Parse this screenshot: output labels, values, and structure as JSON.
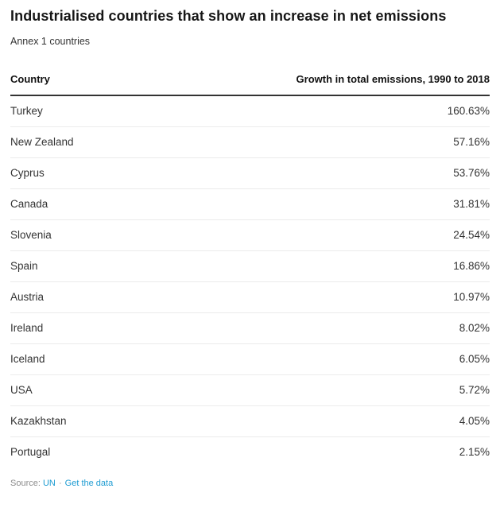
{
  "chart_data": {
    "type": "table",
    "title": "Industrialised countries that show an increase in net emissions",
    "subtitle": "Annex 1 countries",
    "columns": [
      "Country",
      "Growth in total emissions, 1990 to 2018"
    ],
    "rows": [
      {
        "country": "Turkey",
        "growth": "160.63%",
        "growth_pct": 160.63
      },
      {
        "country": "New Zealand",
        "growth": "57.16%",
        "growth_pct": 57.16
      },
      {
        "country": "Cyprus",
        "growth": "53.76%",
        "growth_pct": 53.76
      },
      {
        "country": "Canada",
        "growth": "31.81%",
        "growth_pct": 31.81
      },
      {
        "country": "Slovenia",
        "growth": "24.54%",
        "growth_pct": 24.54
      },
      {
        "country": "Spain",
        "growth": "16.86%",
        "growth_pct": 16.86
      },
      {
        "country": "Austria",
        "growth": "10.97%",
        "growth_pct": 10.97
      },
      {
        "country": "Ireland",
        "growth": "8.02%",
        "growth_pct": 8.02
      },
      {
        "country": "Iceland",
        "growth": "6.05%",
        "growth_pct": 6.05
      },
      {
        "country": "USA",
        "growth": "5.72%",
        "growth_pct": 5.72
      },
      {
        "country": "Kazakhstan",
        "growth": "4.05%",
        "growth_pct": 4.05
      },
      {
        "country": "Portugal",
        "growth": "2.15%",
        "growth_pct": 2.15
      }
    ],
    "layout": {
      "value_alignment": "right",
      "header_rule": "2px solid dark",
      "row_separator": "1px light gray",
      "grid": "horizontal-only"
    }
  },
  "footer": {
    "source_label": "Source:",
    "source_link": "UN",
    "separator": "·",
    "data_link": "Get the data"
  },
  "colors": {
    "title_text": "#161616",
    "body_text": "#333333",
    "header_rule": "#333333",
    "row_separator": "#ebebeb",
    "footer_text": "#8c8c8c",
    "link": "#1e9cd2",
    "background": "#ffffff"
  }
}
